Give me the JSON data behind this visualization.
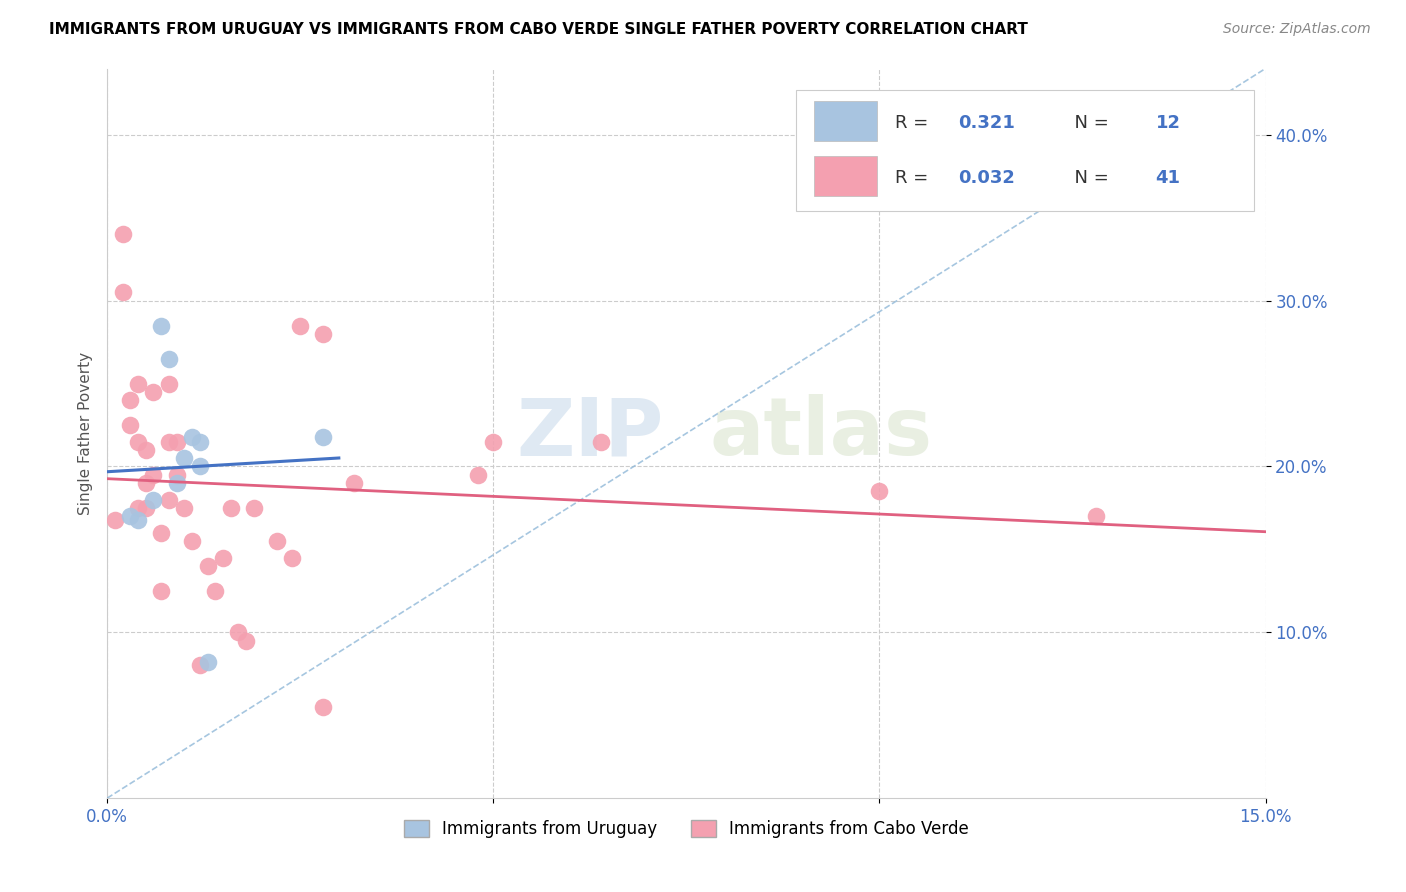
{
  "title": "IMMIGRANTS FROM URUGUAY VS IMMIGRANTS FROM CABO VERDE SINGLE FATHER POVERTY CORRELATION CHART",
  "source": "Source: ZipAtlas.com",
  "ylabel": "Single Father Poverty",
  "xlim": [
    0.0,
    0.15
  ],
  "ylim": [
    0.0,
    0.44
  ],
  "ytick_labels": [
    "10.0%",
    "20.0%",
    "30.0%",
    "40.0%"
  ],
  "ytick_vals": [
    0.1,
    0.2,
    0.3,
    0.4
  ],
  "legend_label1": "Immigrants from Uruguay",
  "legend_label2": "Immigrants from Cabo Verde",
  "R1": "0.321",
  "N1": "12",
  "R2": "0.032",
  "N2": "41",
  "color_uruguay": "#a8c4e0",
  "color_cabo_verde": "#f4a0b0",
  "trendline_color_uruguay": "#4472c4",
  "trendline_color_cabo_verde": "#e06080",
  "trendline_dashed_color": "#90b8d8",
  "watermark_zip": "ZIP",
  "watermark_atlas": "atlas",
  "scatter_uruguay_x": [
    0.003,
    0.004,
    0.006,
    0.007,
    0.008,
    0.009,
    0.01,
    0.011,
    0.012,
    0.012,
    0.013,
    0.028
  ],
  "scatter_uruguay_y": [
    0.17,
    0.168,
    0.18,
    0.285,
    0.265,
    0.19,
    0.205,
    0.218,
    0.215,
    0.2,
    0.082,
    0.218
  ],
  "scatter_cabo_verde_x": [
    0.001,
    0.002,
    0.002,
    0.003,
    0.003,
    0.004,
    0.004,
    0.004,
    0.005,
    0.005,
    0.005,
    0.006,
    0.006,
    0.007,
    0.007,
    0.008,
    0.008,
    0.008,
    0.009,
    0.009,
    0.01,
    0.011,
    0.012,
    0.013,
    0.014,
    0.015,
    0.016,
    0.017,
    0.018,
    0.019,
    0.022,
    0.024,
    0.025,
    0.028,
    0.028,
    0.032,
    0.048,
    0.05,
    0.064,
    0.1,
    0.128
  ],
  "scatter_cabo_verde_y": [
    0.168,
    0.34,
    0.305,
    0.24,
    0.225,
    0.25,
    0.215,
    0.175,
    0.21,
    0.19,
    0.175,
    0.245,
    0.195,
    0.16,
    0.125,
    0.25,
    0.215,
    0.18,
    0.215,
    0.195,
    0.175,
    0.155,
    0.08,
    0.14,
    0.125,
    0.145,
    0.175,
    0.1,
    0.095,
    0.175,
    0.155,
    0.145,
    0.285,
    0.28,
    0.055,
    0.19,
    0.195,
    0.215,
    0.215,
    0.185,
    0.17
  ],
  "background_color": "#ffffff",
  "grid_color": "#cccccc"
}
